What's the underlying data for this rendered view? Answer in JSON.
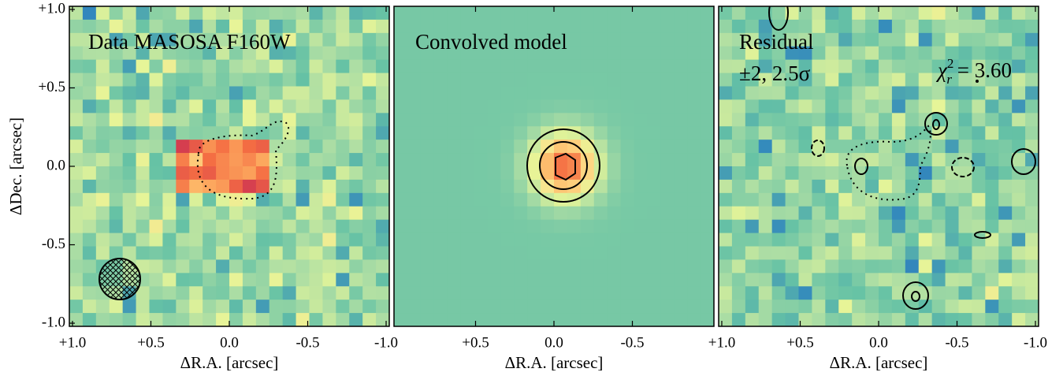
{
  "chart_data": [
    {
      "type": "image",
      "title": "Data MASOSA F160W",
      "xlabel": "ΔR.A. [arcsec]",
      "ylabel": "ΔDec. [arcsec]",
      "xlim": [
        1.02,
        -1.02
      ],
      "ylim": [
        -1.02,
        1.02
      ],
      "xticks": [
        {
          "value": 1,
          "label": "+1.0"
        },
        {
          "value": 0.5,
          "label": "+0.5"
        },
        {
          "value": 0,
          "label": "0.0"
        },
        {
          "value": -0.5,
          "label": "-0.5"
        },
        {
          "value": -1,
          "label": "-1.0"
        }
      ],
      "yticks": [
        {
          "value": 1,
          "label": "+1.0"
        },
        {
          "value": 0.5,
          "label": "+0.5"
        },
        {
          "value": 0,
          "label": "0.0"
        },
        {
          "value": -0.5,
          "label": "-0.5"
        },
        {
          "value": -1,
          "label": "-1.0"
        }
      ]
    },
    {
      "type": "image",
      "title": "Convolved model",
      "xlabel": "ΔR.A. [arcsec]",
      "xlim": [
        1.02,
        -1.02
      ],
      "ylim": [
        -1.02,
        1.02
      ],
      "xticks": [
        {
          "value": 0.5,
          "label": "+0.5"
        },
        {
          "value": 0,
          "label": "0.0"
        },
        {
          "value": -0.5,
          "label": "-0.5"
        }
      ]
    },
    {
      "type": "image",
      "title": "Residual",
      "subtitle": "±2, 2.5σ",
      "xlabel": "ΔR.A. [arcsec]",
      "annotation": {
        "symbol": "χ",
        "sub": "r",
        "sup": "2",
        "text": " = 3.60"
      },
      "xlim": [
        1.02,
        -1.02
      ],
      "ylim": [
        -1.02,
        1.02
      ],
      "xticks": [
        {
          "value": 1,
          "label": "+1.0"
        },
        {
          "value": 0.5,
          "label": "+0.5"
        },
        {
          "value": 0,
          "label": "0.0"
        },
        {
          "value": -0.5,
          "label": "-0.5"
        },
        {
          "value": -1,
          "label": "-1.0"
        }
      ]
    }
  ]
}
